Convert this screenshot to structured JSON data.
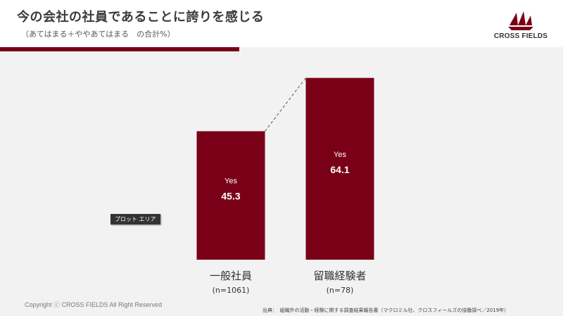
{
  "header": {
    "title": "今の会社の社員であることに誇りを感じる",
    "subtitle": "（あてはまる＋ややあてはまる　の合計%）",
    "brand": "CROSS FIELDS",
    "accent_color": "#7a0018"
  },
  "chart_data": {
    "type": "bar",
    "title": "今の会社の社員であることに誇りを感じる",
    "subtitle": "（あてはまる＋ややあてはまる　の合計%）",
    "categories": [
      "一般社員",
      "留職経験者"
    ],
    "category_notes": [
      "(n=1061)",
      "(n=78)"
    ],
    "series": [
      {
        "values": [
          45.3,
          64.1
        ],
        "label": "Yes",
        "color": "#7a0018"
      }
    ],
    "ylim": [
      0,
      67
    ],
    "grid": false,
    "legend": "none",
    "annotations": [
      "dashed connector from bar 1 top to bar 2 top"
    ]
  },
  "tooltip": "プロット エリア",
  "footer": {
    "copyright": "Copyright ⓒ CROSS FIELDS All Right  Reserved",
    "source": "出典：　組織外の活動・経験に関する調査結果報告書（マクロミル社、クロスフィールズの協働調べ／2019年）"
  }
}
